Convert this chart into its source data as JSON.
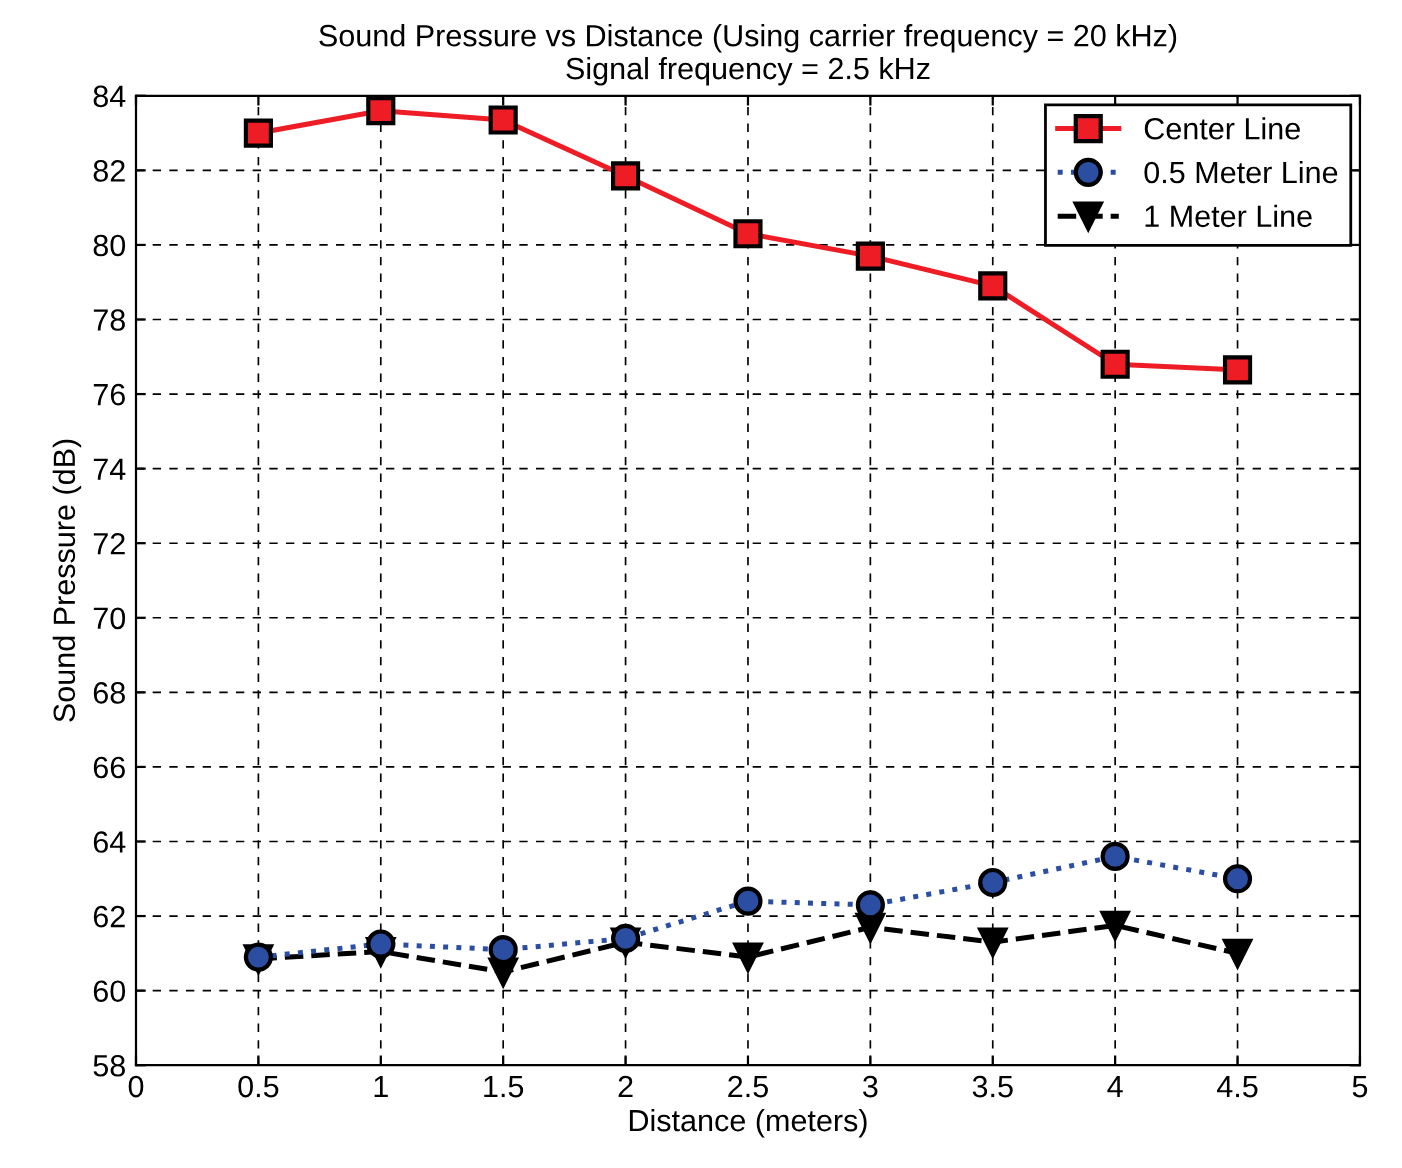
{
  "chart_data": {
    "type": "line",
    "title": "Sound Pressure vs Distance (Using carrier frequency = 20 kHz)\nSignal frequency = 2.5 kHz",
    "xlabel": "Distance (meters)",
    "ylabel": "Sound Pressure (dB)",
    "x": [
      0.5,
      1,
      1.5,
      2,
      2.5,
      3,
      3.5,
      4,
      4.5
    ],
    "series": [
      {
        "name": "Center Line",
        "color": "#ee1c25",
        "marker": "square",
        "line_style": "solid",
        "values": [
          83.0,
          83.6,
          83.35,
          81.85,
          80.3,
          79.7,
          78.9,
          76.8,
          76.65
        ]
      },
      {
        "name": "0.5 Meter Line",
        "color": "#2b4ea2",
        "marker": "circle",
        "line_style": "dotted",
        "values": [
          60.9,
          61.25,
          61.1,
          61.4,
          62.4,
          62.3,
          62.9,
          63.6,
          63.0
        ]
      },
      {
        "name": "1 Meter Line",
        "color": "#000000",
        "marker": "triangle",
        "line_style": "dashed",
        "values": [
          60.85,
          61.05,
          60.5,
          61.3,
          60.9,
          61.7,
          61.3,
          61.75,
          61.0
        ]
      }
    ],
    "xlim": [
      0,
      5
    ],
    "xticks": [
      0,
      0.5,
      1,
      1.5,
      2,
      2.5,
      3,
      3.5,
      4,
      4.5,
      5
    ],
    "ylim": [
      58,
      84
    ],
    "yticks": [
      58,
      60,
      62,
      64,
      66,
      68,
      70,
      72,
      74,
      76,
      78,
      80,
      82,
      84
    ],
    "grid": true,
    "legend": "top right"
  }
}
